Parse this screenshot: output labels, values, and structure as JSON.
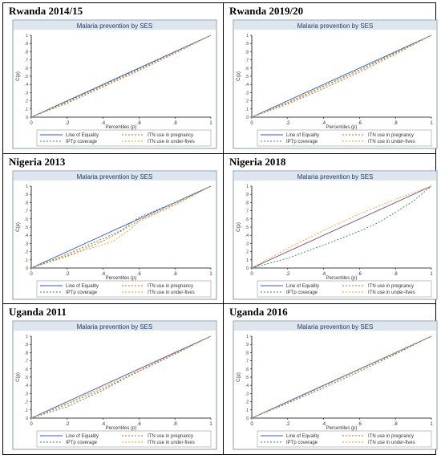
{
  "chart_data": [
    {
      "type": "line",
      "panel_title": "Rwanda 2014/15",
      "title": "Malaria prevention by SES",
      "xlabel": "Percentiles (p)",
      "ylabel": "C(p)",
      "x_ticks": [
        "0",
        ".2",
        ".4",
        ".6",
        ".8",
        "1"
      ],
      "y_ticks": [
        "0",
        ".1",
        ".2",
        ".3",
        ".4",
        ".5",
        ".6",
        ".7",
        ".8",
        ".9",
        "1"
      ],
      "xlim": [
        0,
        1
      ],
      "ylim": [
        0,
        1
      ],
      "legend": [
        "Line of Equality",
        "ITN use in pregnancy",
        "IPTp coverage",
        "ITN use in under-fives"
      ],
      "series": [
        {
          "name": "Line of Equality",
          "x": [
            0,
            1
          ],
          "y": [
            0,
            1
          ]
        },
        {
          "name": "ITN use in pregnancy",
          "x": [
            0,
            0.2,
            0.4,
            0.6,
            0.8,
            1
          ],
          "y": [
            0,
            0.17,
            0.37,
            0.57,
            0.78,
            1
          ]
        },
        {
          "name": "IPTp coverage",
          "x": [
            0,
            0.2,
            0.4,
            0.6,
            0.8,
            1
          ],
          "y": [
            0,
            0.19,
            0.39,
            0.59,
            0.79,
            1
          ]
        },
        {
          "name": "ITN use in under-fives",
          "x": [
            0,
            0.2,
            0.4,
            0.6,
            0.8,
            1
          ],
          "y": [
            0,
            0.18,
            0.38,
            0.58,
            0.79,
            1
          ]
        }
      ]
    },
    {
      "type": "line",
      "panel_title": "Rwanda 2019/20",
      "title": "Malaria prevention by SES",
      "xlabel": "Percentiles (p)",
      "ylabel": "C(p)",
      "x_ticks": [
        "0",
        ".2",
        ".4",
        ".6",
        ".8",
        "1"
      ],
      "y_ticks": [
        "0",
        ".1",
        ".2",
        ".3",
        ".4",
        ".5",
        ".6",
        ".7",
        ".8",
        ".9",
        "1"
      ],
      "xlim": [
        0,
        1
      ],
      "ylim": [
        0,
        1
      ],
      "legend": [
        "Line of Equality",
        "ITN use in pregnancy",
        "IPTp coverage",
        "ITN use in under-fives"
      ],
      "series": [
        {
          "name": "Line of Equality",
          "x": [
            0,
            1
          ],
          "y": [
            0,
            1
          ]
        },
        {
          "name": "ITN use in pregnancy",
          "x": [
            0,
            0.2,
            0.4,
            0.6,
            0.8,
            1
          ],
          "y": [
            0,
            0.16,
            0.35,
            0.55,
            0.77,
            1
          ]
        },
        {
          "name": "IPTp coverage",
          "x": [
            0,
            0.2,
            0.4,
            0.6,
            0.8,
            1
          ],
          "y": [
            0,
            0.18,
            0.38,
            0.58,
            0.79,
            1
          ]
        },
        {
          "name": "ITN use in under-fives",
          "x": [
            0,
            0.2,
            0.4,
            0.6,
            0.8,
            1
          ],
          "y": [
            0,
            0.17,
            0.37,
            0.57,
            0.78,
            1
          ]
        }
      ]
    },
    {
      "type": "line",
      "panel_title": "Nigeria 2013",
      "title": "Malaria prevention by SES",
      "xlabel": "Percentiles (p)",
      "ylabel": "C(p)",
      "x_ticks": [
        "0",
        ".2",
        ".4",
        ".6",
        ".8",
        "1"
      ],
      "y_ticks": [
        "0",
        ".1",
        ".2",
        ".3",
        ".4",
        ".5",
        ".6",
        ".7",
        ".8",
        ".9",
        "1"
      ],
      "xlim": [
        0,
        1
      ],
      "ylim": [
        0,
        1
      ],
      "legend": [
        "Line of Equality",
        "ITN use in pregnancy",
        "IPTp coverage",
        "ITN use in under-fives"
      ],
      "series": [
        {
          "name": "Line of Equality",
          "x": [
            0,
            1
          ],
          "y": [
            0,
            1
          ]
        },
        {
          "name": "ITN use in pregnancy",
          "x": [
            0,
            0.2,
            0.4,
            0.5,
            0.6,
            0.8,
            1
          ],
          "y": [
            0,
            0.15,
            0.33,
            0.45,
            0.58,
            0.78,
            1
          ]
        },
        {
          "name": "IPTp coverage",
          "x": [
            0,
            0.2,
            0.4,
            0.5,
            0.6,
            0.8,
            1
          ],
          "y": [
            0,
            0.17,
            0.36,
            0.46,
            0.62,
            0.8,
            1
          ]
        },
        {
          "name": "ITN use in under-fives",
          "x": [
            0,
            0.2,
            0.3,
            0.45,
            0.55,
            0.6,
            0.8,
            1
          ],
          "y": [
            0,
            0.14,
            0.22,
            0.32,
            0.47,
            0.57,
            0.77,
            1
          ]
        }
      ]
    },
    {
      "type": "line",
      "panel_title": "Nigeria 2018",
      "title": "Malaria prevention by SES",
      "xlabel": "Percentiles (p)",
      "ylabel": "C(p)",
      "x_ticks": [
        "0",
        ".2",
        ".4",
        ".6",
        ".8",
        "1"
      ],
      "y_ticks": [
        "0",
        ".1",
        ".2",
        ".3",
        ".4",
        ".5",
        ".6",
        ".7",
        ".8",
        ".9",
        "1"
      ],
      "xlim": [
        0,
        1
      ],
      "ylim": [
        0,
        1
      ],
      "legend": [
        "Line of Equality",
        "ITN use in pregnancy",
        "IPTp coverage",
        "ITN use in under-fives"
      ],
      "series": [
        {
          "name": "Line of Equality",
          "x": [
            0,
            1
          ],
          "y": [
            0,
            1
          ]
        },
        {
          "name": "ITN use in pregnancy",
          "x": [
            0,
            0.2,
            0.4,
            0.6,
            0.8,
            1
          ],
          "y": [
            0,
            0.2,
            0.4,
            0.6,
            0.8,
            1
          ]
        },
        {
          "name": "IPTp coverage",
          "x": [
            0,
            0.2,
            0.4,
            0.6,
            0.7,
            0.8,
            0.9,
            1
          ],
          "y": [
            0,
            0.12,
            0.28,
            0.45,
            0.55,
            0.68,
            0.82,
            1
          ]
        },
        {
          "name": "ITN use in under-fives",
          "x": [
            0,
            0.2,
            0.4,
            0.6,
            0.8,
            1
          ],
          "y": [
            0,
            0.24,
            0.46,
            0.66,
            0.84,
            1
          ]
        }
      ]
    },
    {
      "type": "line",
      "panel_title": "Uganda 2011",
      "title": "Malaria prevention by SES",
      "xlabel": "Percentiles (p)",
      "ylabel": "C(p)",
      "x_ticks": [
        "0",
        ".2",
        ".4",
        ".6",
        ".8",
        "1"
      ],
      "y_ticks": [
        "0",
        ".1",
        ".2",
        ".3",
        ".4",
        ".5",
        ".6",
        ".7",
        ".8",
        ".9",
        "1"
      ],
      "xlim": [
        0,
        1
      ],
      "ylim": [
        0,
        1
      ],
      "legend": [
        "Line of Equality",
        "ITN use in pregnancy",
        "IPTp coverage",
        "ITN use in under-fives"
      ],
      "series": [
        {
          "name": "Line of Equality",
          "x": [
            0,
            1
          ],
          "y": [
            0,
            1
          ]
        },
        {
          "name": "ITN use in pregnancy",
          "x": [
            0,
            0.2,
            0.4,
            0.6,
            0.8,
            1
          ],
          "y": [
            0,
            0.17,
            0.36,
            0.57,
            0.78,
            1
          ]
        },
        {
          "name": "IPTp coverage",
          "x": [
            0,
            0.2,
            0.4,
            0.5,
            0.6,
            0.8,
            1
          ],
          "y": [
            0,
            0.14,
            0.34,
            0.46,
            0.58,
            0.79,
            1
          ]
        },
        {
          "name": "ITN use in under-fives",
          "x": [
            0,
            0.2,
            0.4,
            0.6,
            0.8,
            1
          ],
          "y": [
            0,
            0.18,
            0.38,
            0.58,
            0.79,
            1
          ]
        }
      ]
    },
    {
      "type": "line",
      "panel_title": "Uganda 2016",
      "title": "Malaria prevention by SES",
      "xlabel": "Percentiles (p)",
      "ylabel": "C(p)",
      "x_ticks": [
        "0",
        ".2",
        ".4",
        ".6",
        ".8",
        "1"
      ],
      "y_ticks": [
        "0",
        ".1",
        ".2",
        ".3",
        ".4",
        ".5",
        ".6",
        ".7",
        ".8",
        ".9",
        "1"
      ],
      "xlim": [
        0,
        1
      ],
      "ylim": [
        0,
        1
      ],
      "legend": [
        "Line of Equality",
        "ITN use in pregnancy",
        "IPTp coverage",
        "ITN use in under-fives"
      ],
      "series": [
        {
          "name": "Line of Equality",
          "x": [
            0,
            1
          ],
          "y": [
            0,
            1
          ]
        },
        {
          "name": "ITN use in pregnancy",
          "x": [
            0,
            0.2,
            0.4,
            0.6,
            0.8,
            1
          ],
          "y": [
            0,
            0.19,
            0.39,
            0.59,
            0.79,
            1
          ]
        },
        {
          "name": "IPTp coverage",
          "x": [
            0,
            0.2,
            0.4,
            0.6,
            0.8,
            1
          ],
          "y": [
            0,
            0.18,
            0.37,
            0.57,
            0.78,
            1
          ]
        },
        {
          "name": "ITN use in under-fives",
          "x": [
            0,
            0.2,
            0.4,
            0.6,
            0.8,
            1
          ],
          "y": [
            0,
            0.19,
            0.39,
            0.6,
            0.8,
            1
          ]
        }
      ]
    }
  ],
  "styles": {
    "series_colors": [
      "#3b4fd8",
      "#e0582a",
      "#2e8b57",
      "#e8a317"
    ],
    "series_dash": [
      "",
      "2,2",
      "2,2",
      "2,2"
    ],
    "frame_color": "#8a9aa8",
    "title_band_color": "#dde6ee",
    "chart_title_color": "#1f3c6e",
    "text_color": "#333333"
  }
}
